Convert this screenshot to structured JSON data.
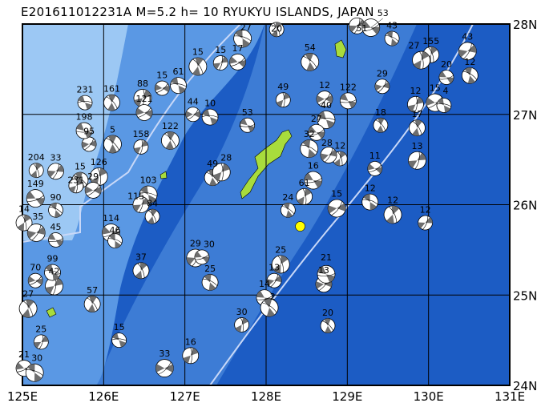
{
  "title": "E201611012231A M=5.2 h= 10 RYUKYU ISLANDS, JAPAN",
  "map": {
    "lon_range": [
      125,
      131
    ],
    "lat_range": [
      24,
      28
    ],
    "lon_ticks": [
      "125E",
      "126E",
      "127E",
      "128E",
      "129E",
      "130E",
      "131E"
    ],
    "lat_ticks": [
      "28N",
      "27N",
      "26N",
      "25N",
      "24N"
    ],
    "grid": true,
    "colors": {
      "shallow": "#9cc8f4",
      "mid": "#5a98e4",
      "deep": "#1c5cc4",
      "land": "#a8dc3c",
      "compression": "#6e6e6e",
      "tension": "#ffffff",
      "trench": "#c8d8f8",
      "highlight": "#ffff00"
    }
  },
  "highlight_event": {
    "lon": 128.42,
    "lat": 25.76
  },
  "events": [
    {
      "lon": 125.77,
      "lat": 27.13,
      "label": "231"
    },
    {
      "lon": 126.1,
      "lat": 27.13,
      "label": "161"
    },
    {
      "lon": 126.48,
      "lat": 27.18,
      "label": "88"
    },
    {
      "lon": 126.72,
      "lat": 27.29,
      "label": "15"
    },
    {
      "lon": 126.92,
      "lat": 27.32,
      "label": "61"
    },
    {
      "lon": 127.16,
      "lat": 27.53,
      "label": "15"
    },
    {
      "lon": 127.44,
      "lat": 27.57,
      "label": "15"
    },
    {
      "lon": 127.65,
      "lat": 27.58,
      "label": "17"
    },
    {
      "lon": 127.71,
      "lat": 27.84,
      "label": "27"
    },
    {
      "lon": 128.13,
      "lat": 27.94,
      "label": "20"
    },
    {
      "lon": 129.12,
      "lat": 27.98,
      "label": "51"
    },
    {
      "lon": 129.29,
      "lat": 27.96,
      "label": "53"
    },
    {
      "lon": 129.55,
      "lat": 27.84,
      "label": "43"
    },
    {
      "lon": 130.03,
      "lat": 27.66,
      "label": "155"
    },
    {
      "lon": 130.48,
      "lat": 27.7,
      "label": "43"
    },
    {
      "lon": 130.22,
      "lat": 27.41,
      "label": "20"
    },
    {
      "lon": 130.51,
      "lat": 27.43,
      "label": "12"
    },
    {
      "lon": 129.91,
      "lat": 27.6,
      "label": "27"
    },
    {
      "lon": 129.43,
      "lat": 27.31,
      "label": "29"
    },
    {
      "lon": 129.01,
      "lat": 27.15,
      "label": "122"
    },
    {
      "lon": 128.54,
      "lat": 27.58,
      "label": "54"
    },
    {
      "lon": 128.21,
      "lat": 27.16,
      "label": "49"
    },
    {
      "lon": 128.72,
      "lat": 27.17,
      "label": "12"
    },
    {
      "lon": 128.74,
      "lat": 26.94,
      "label": "40"
    },
    {
      "lon": 129.41,
      "lat": 26.88,
      "label": "18"
    },
    {
      "lon": 129.84,
      "lat": 27.11,
      "label": "12"
    },
    {
      "lon": 130.08,
      "lat": 27.13,
      "label": "15"
    },
    {
      "lon": 130.19,
      "lat": 27.1,
      "label": "4"
    },
    {
      "lon": 129.86,
      "lat": 26.85,
      "label": "17"
    },
    {
      "lon": 129.86,
      "lat": 26.49,
      "label": "13"
    },
    {
      "lon": 129.34,
      "lat": 26.4,
      "label": "11"
    },
    {
      "lon": 129.28,
      "lat": 26.03,
      "label": "12"
    },
    {
      "lon": 129.56,
      "lat": 25.89,
      "label": "12"
    },
    {
      "lon": 129.96,
      "lat": 25.8,
      "label": "12"
    },
    {
      "lon": 128.62,
      "lat": 26.8,
      "label": "27"
    },
    {
      "lon": 128.53,
      "lat": 26.62,
      "label": "32"
    },
    {
      "lon": 128.91,
      "lat": 26.51,
      "label": "12"
    },
    {
      "lon": 128.77,
      "lat": 26.55,
      "label": "28"
    },
    {
      "lon": 128.58,
      "lat": 26.27,
      "label": "16"
    },
    {
      "lon": 128.27,
      "lat": 25.94,
      "label": "24"
    },
    {
      "lon": 128.47,
      "lat": 26.09,
      "label": "61"
    },
    {
      "lon": 128.87,
      "lat": 25.96,
      "label": "15"
    },
    {
      "lon": 127.77,
      "lat": 26.88,
      "label": "53"
    },
    {
      "lon": 127.34,
      "lat": 26.3,
      "label": "49"
    },
    {
      "lon": 127.45,
      "lat": 26.36,
      "label": "28"
    },
    {
      "lon": 127.1,
      "lat": 27.0,
      "label": "44"
    },
    {
      "lon": 127.31,
      "lat": 26.97,
      "label": "10"
    },
    {
      "lon": 126.82,
      "lat": 26.71,
      "label": "122"
    },
    {
      "lon": 126.46,
      "lat": 26.64,
      "label": "158"
    },
    {
      "lon": 126.5,
      "lat": 27.02,
      "label": "121"
    },
    {
      "lon": 126.55,
      "lat": 26.11,
      "label": "103"
    },
    {
      "lon": 126.6,
      "lat": 25.87,
      "label": "84"
    },
    {
      "lon": 126.46,
      "lat": 26.0,
      "label": "115"
    },
    {
      "lon": 126.09,
      "lat": 25.69,
      "label": "114"
    },
    {
      "lon": 126.14,
      "lat": 25.6,
      "label": "46"
    },
    {
      "lon": 126.46,
      "lat": 25.27,
      "label": "37"
    },
    {
      "lon": 127.13,
      "lat": 25.41,
      "label": "29"
    },
    {
      "lon": 127.21,
      "lat": 25.42,
      "label": "30"
    },
    {
      "lon": 127.31,
      "lat": 25.14,
      "label": "25"
    },
    {
      "lon": 128.18,
      "lat": 25.34,
      "label": "25"
    },
    {
      "lon": 128.1,
      "lat": 25.16,
      "label": "13"
    },
    {
      "lon": 127.98,
      "lat": 24.97,
      "label": "14"
    },
    {
      "lon": 128.04,
      "lat": 24.86,
      "label": "2"
    },
    {
      "lon": 127.7,
      "lat": 24.67,
      "label": "30"
    },
    {
      "lon": 128.71,
      "lat": 25.12,
      "label": "13"
    },
    {
      "lon": 128.74,
      "lat": 25.23,
      "label": "21"
    },
    {
      "lon": 128.76,
      "lat": 24.66,
      "label": "20"
    },
    {
      "lon": 127.07,
      "lat": 24.33,
      "label": "16"
    },
    {
      "lon": 126.75,
      "lat": 24.19,
      "label": "33"
    },
    {
      "lon": 126.19,
      "lat": 24.5,
      "label": "15"
    },
    {
      "lon": 125.86,
      "lat": 24.9,
      "label": "57"
    },
    {
      "lon": 125.39,
      "lat": 25.1,
      "label": "42"
    },
    {
      "lon": 125.16,
      "lat": 25.16,
      "label": "70"
    },
    {
      "lon": 125.37,
      "lat": 25.25,
      "label": "99"
    },
    {
      "lon": 125.07,
      "lat": 24.85,
      "label": "27"
    },
    {
      "lon": 125.23,
      "lat": 24.48,
      "label": "25"
    },
    {
      "lon": 125.02,
      "lat": 24.19,
      "label": "21"
    },
    {
      "lon": 125.15,
      "lat": 24.14,
      "label": "30"
    },
    {
      "lon": 125.17,
      "lat": 26.38,
      "label": "204"
    },
    {
      "lon": 125.41,
      "lat": 26.37,
      "label": "33"
    },
    {
      "lon": 125.16,
      "lat": 26.07,
      "label": "149"
    },
    {
      "lon": 125.41,
      "lat": 25.94,
      "label": "90"
    },
    {
      "lon": 125.02,
      "lat": 25.8,
      "label": "14"
    },
    {
      "lon": 125.17,
      "lat": 25.69,
      "label": "35"
    },
    {
      "lon": 125.41,
      "lat": 25.61,
      "label": "45"
    },
    {
      "lon": 125.71,
      "lat": 26.27,
      "label": "15"
    },
    {
      "lon": 125.94,
      "lat": 26.31,
      "label": "126"
    },
    {
      "lon": 125.82,
      "lat": 26.67,
      "label": "95"
    },
    {
      "lon": 125.76,
      "lat": 26.82,
      "label": "198"
    },
    {
      "lon": 126.11,
      "lat": 26.67,
      "label": "5"
    },
    {
      "lon": 125.66,
      "lat": 26.21,
      "label": "231"
    },
    {
      "lon": 125.87,
      "lat": 26.16,
      "label": "29"
    }
  ]
}
